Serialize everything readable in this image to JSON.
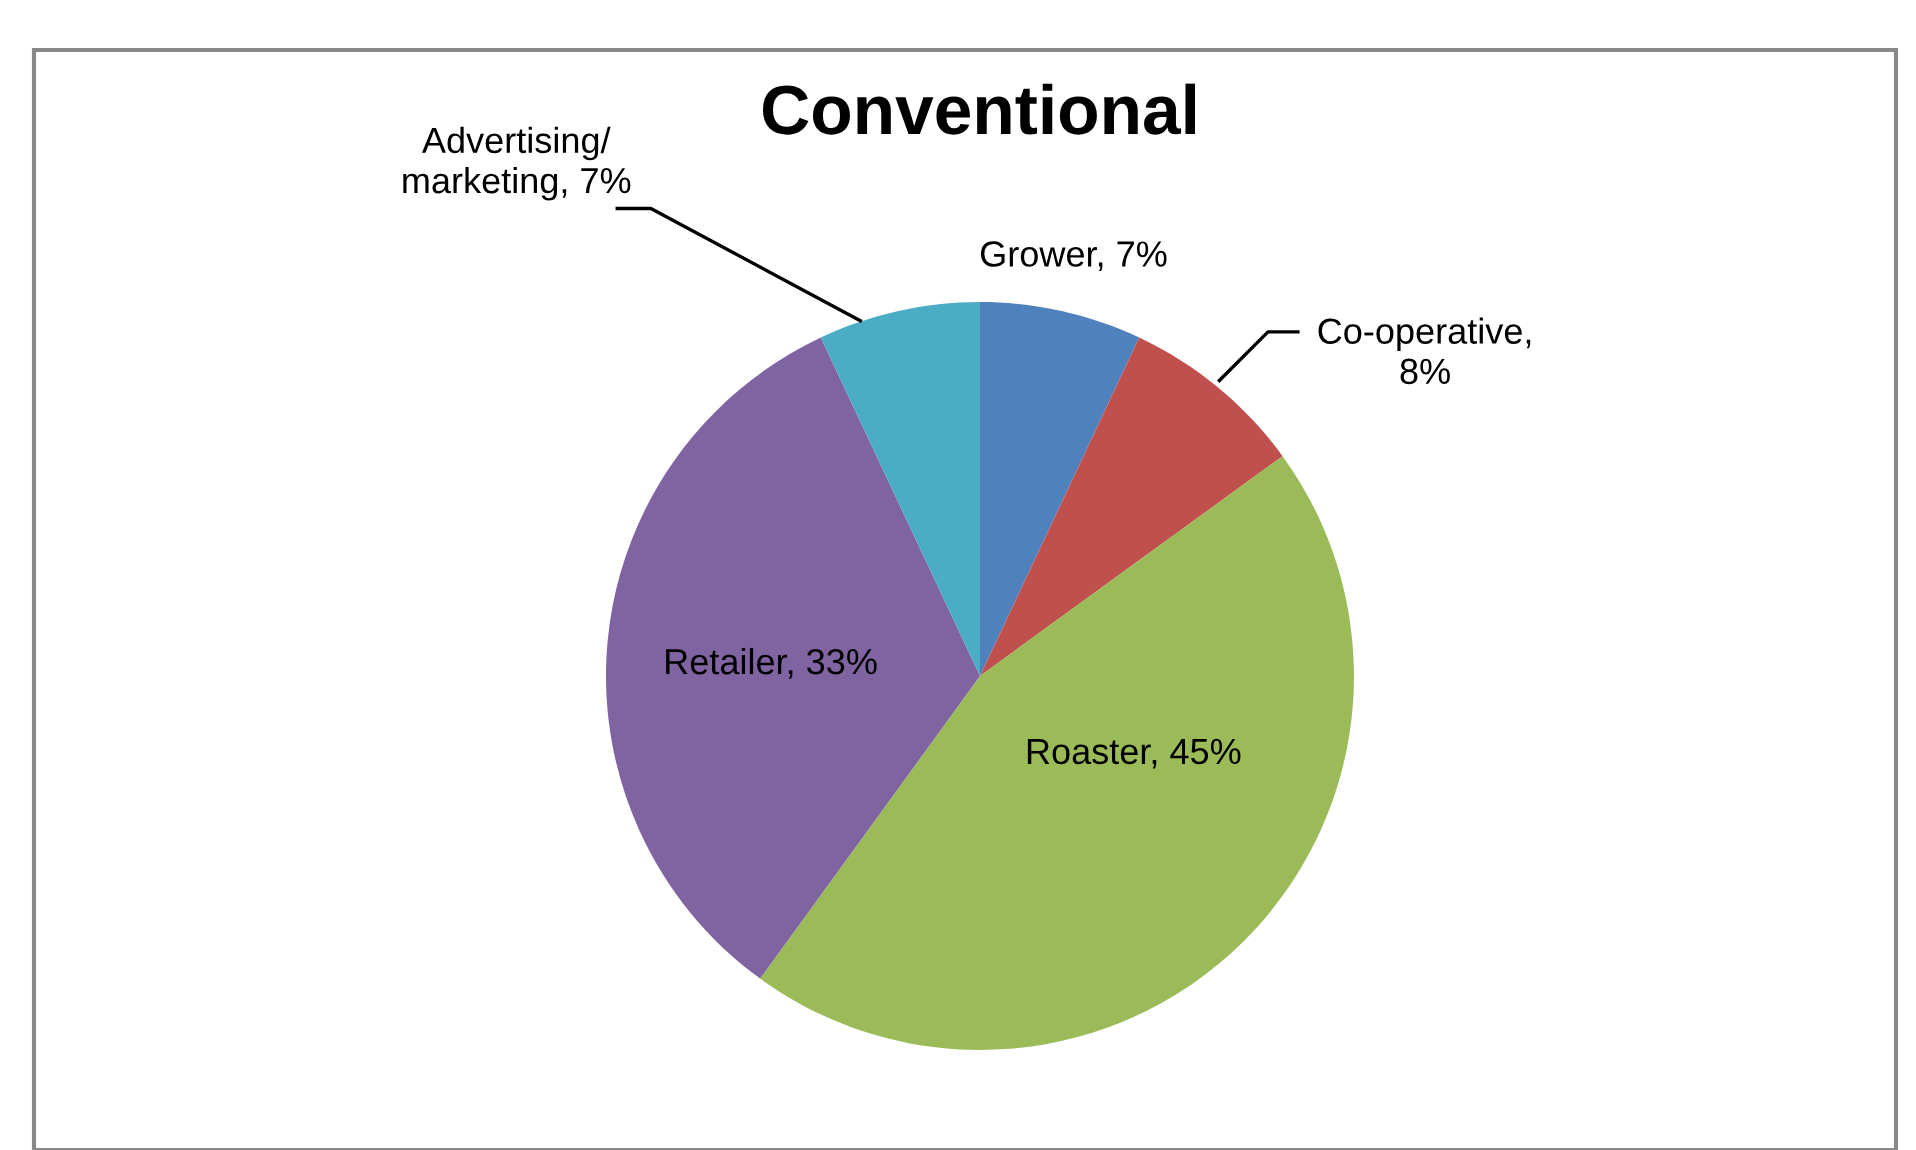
{
  "chart_data": {
    "type": "pie",
    "title": "Conventional",
    "categories": [
      "Grower, 7%",
      "Co-operative,\n8%",
      "Roaster, 45%",
      "Retailer, 33%",
      "Advertising/\nmarketing, 7%"
    ],
    "values": [
      7,
      8,
      45,
      33,
      7
    ],
    "colors": [
      "#4f81bd",
      "#c0504d",
      "#9bbb59",
      "#8064a2",
      "#4bacc6"
    ],
    "legend": false
  }
}
